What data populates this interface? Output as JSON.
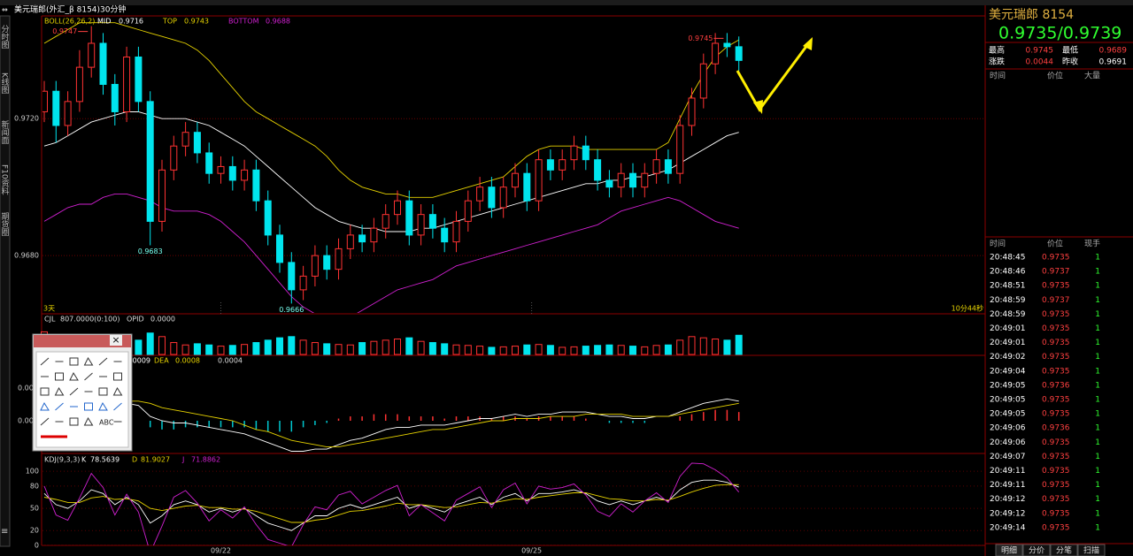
{
  "window": {
    "title": "美元瑞郎(外汇_β 8154)30分钟"
  },
  "sidebar_tabs": [
    "分时图",
    "K线图",
    "新闻面",
    "F10资料",
    "期货圈"
  ],
  "price_chart": {
    "type": "candlestick",
    "indicator": "BOLL(26,26,2)",
    "ylim": [
      0.9663,
      0.975
    ],
    "yticks": [
      {
        "value": 0.972,
        "label": "0.9720"
      },
      {
        "value": 0.968,
        "label": "0.9680"
      }
    ],
    "up_color": "#ff3232",
    "down_color": "#00e5ee",
    "footer_left": "3天",
    "footer_right": "10分44秒",
    "candles": [
      [
        0.9722,
        0.9731,
        0.9719,
        0.9728
      ],
      [
        0.9728,
        0.9731,
        0.9713,
        0.9718
      ],
      [
        0.9718,
        0.9728,
        0.9715,
        0.9725
      ],
      [
        0.9725,
        0.974,
        0.9722,
        0.9735
      ],
      [
        0.9735,
        0.9747,
        0.9732,
        0.9742
      ],
      [
        0.9742,
        0.9745,
        0.9727,
        0.973
      ],
      [
        0.973,
        0.9733,
        0.9718,
        0.9722
      ],
      [
        0.9722,
        0.9741,
        0.9719,
        0.9738
      ],
      [
        0.9738,
        0.9741,
        0.9722,
        0.9725
      ],
      [
        0.9725,
        0.9728,
        0.9683,
        0.969
      ],
      [
        0.969,
        0.9708,
        0.9687,
        0.9705
      ],
      [
        0.9705,
        0.9715,
        0.9702,
        0.9712
      ],
      [
        0.9712,
        0.9719,
        0.9709,
        0.9716
      ],
      [
        0.9716,
        0.9719,
        0.9707,
        0.971
      ],
      [
        0.971,
        0.9713,
        0.9701,
        0.9704
      ],
      [
        0.9704,
        0.9709,
        0.9701,
        0.9706
      ],
      [
        0.9706,
        0.9709,
        0.9699,
        0.9702
      ],
      [
        0.9702,
        0.9708,
        0.9699,
        0.9705
      ],
      [
        0.9705,
        0.9708,
        0.9693,
        0.9696
      ],
      [
        0.9696,
        0.9699,
        0.9683,
        0.9686
      ],
      [
        0.9686,
        0.9689,
        0.9675,
        0.9678
      ],
      [
        0.9678,
        0.9681,
        0.9666,
        0.967
      ],
      [
        0.967,
        0.9677,
        0.9667,
        0.9674
      ],
      [
        0.9674,
        0.9683,
        0.9671,
        0.968
      ],
      [
        0.968,
        0.9683,
        0.9673,
        0.9676
      ],
      [
        0.9676,
        0.9685,
        0.9673,
        0.9682
      ],
      [
        0.9682,
        0.9689,
        0.9679,
        0.9686
      ],
      [
        0.9686,
        0.9689,
        0.9681,
        0.9684
      ],
      [
        0.9684,
        0.9691,
        0.9681,
        0.9688
      ],
      [
        0.9688,
        0.9695,
        0.9685,
        0.9692
      ],
      [
        0.9692,
        0.9699,
        0.9689,
        0.9696
      ],
      [
        0.9696,
        0.9699,
        0.9683,
        0.9686
      ],
      [
        0.9686,
        0.9695,
        0.9683,
        0.9692
      ],
      [
        0.9692,
        0.9695,
        0.9685,
        0.9688
      ],
      [
        0.9688,
        0.9691,
        0.9681,
        0.9684
      ],
      [
        0.9684,
        0.9693,
        0.9681,
        0.969
      ],
      [
        0.969,
        0.9699,
        0.9687,
        0.9696
      ],
      [
        0.9696,
        0.9703,
        0.9693,
        0.97
      ],
      [
        0.97,
        0.9703,
        0.9691,
        0.9694
      ],
      [
        0.9694,
        0.9703,
        0.9691,
        0.97
      ],
      [
        0.97,
        0.9707,
        0.9697,
        0.9704
      ],
      [
        0.9704,
        0.9707,
        0.9693,
        0.9696
      ],
      [
        0.9696,
        0.9711,
        0.9693,
        0.9708
      ],
      [
        0.9708,
        0.9711,
        0.9702,
        0.9705
      ],
      [
        0.9705,
        0.9711,
        0.9702,
        0.9708
      ],
      [
        0.9708,
        0.9715,
        0.9705,
        0.9712
      ],
      [
        0.9712,
        0.9715,
        0.9705,
        0.9708
      ],
      [
        0.9708,
        0.9711,
        0.9699,
        0.9702
      ],
      [
        0.9702,
        0.9705,
        0.9697,
        0.97
      ],
      [
        0.97,
        0.9707,
        0.9697,
        0.9704
      ],
      [
        0.9704,
        0.9707,
        0.9697,
        0.97
      ],
      [
        0.97,
        0.9707,
        0.9697,
        0.9704
      ],
      [
        0.9704,
        0.9711,
        0.9701,
        0.9708
      ],
      [
        0.9708,
        0.9711,
        0.9701,
        0.9704
      ],
      [
        0.9704,
        0.9721,
        0.9701,
        0.9718
      ],
      [
        0.9718,
        0.9729,
        0.9715,
        0.9726
      ],
      [
        0.9726,
        0.9739,
        0.9723,
        0.9736
      ],
      [
        0.9736,
        0.9745,
        0.9733,
        0.9742
      ],
      [
        0.9742,
        0.9745,
        0.9738,
        0.9741
      ],
      [
        0.9741,
        0.9744,
        0.9734,
        0.9737
      ]
    ],
    "lines": [
      {
        "name": "MID",
        "color": "#ffffff",
        "values": [
          0.9712,
          0.9713,
          0.9715,
          0.9717,
          0.9719,
          0.972,
          0.9721,
          0.9722,
          0.9722,
          0.9721,
          0.972,
          0.972,
          0.972,
          0.9719,
          0.9718,
          0.9716,
          0.9714,
          0.9712,
          0.9709,
          0.9706,
          0.9703,
          0.97,
          0.9697,
          0.9694,
          0.9692,
          0.969,
          0.9689,
          0.9688,
          0.9688,
          0.9687,
          0.9687,
          0.9687,
          0.9688,
          0.9688,
          0.9689,
          0.969,
          0.9691,
          0.9692,
          0.9693,
          0.9694,
          0.9695,
          0.9696,
          0.9697,
          0.9698,
          0.9699,
          0.97,
          0.9701,
          0.9701,
          0.9702,
          0.9702,
          0.9703,
          0.9703,
          0.9704,
          0.9705,
          0.9707,
          0.9709,
          0.9711,
          0.9713,
          0.9715,
          0.9716
        ]
      },
      {
        "name": "TOP",
        "color": "#e6d200",
        "values": [
          0.9742,
          0.9744,
          0.9746,
          0.9748,
          0.9748,
          0.9748,
          0.9748,
          0.9747,
          0.9746,
          0.9745,
          0.9744,
          0.9743,
          0.9742,
          0.974,
          0.9737,
          0.9733,
          0.9729,
          0.9725,
          0.9722,
          0.972,
          0.9718,
          0.9716,
          0.9714,
          0.9712,
          0.9709,
          0.9705,
          0.9702,
          0.97,
          0.9699,
          0.9698,
          0.9698,
          0.9697,
          0.9697,
          0.9697,
          0.9698,
          0.9699,
          0.97,
          0.9701,
          0.9702,
          0.9703,
          0.9706,
          0.9709,
          0.9711,
          0.9712,
          0.9712,
          0.9712,
          0.9711,
          0.9711,
          0.9711,
          0.9711,
          0.9711,
          0.9711,
          0.9711,
          0.9713,
          0.972,
          0.9727,
          0.9733,
          0.9738,
          0.9741,
          0.9743
        ]
      },
      {
        "name": "BOTTOM",
        "color": "#d020d0",
        "values": [
          0.969,
          0.9692,
          0.9694,
          0.9695,
          0.9695,
          0.9697,
          0.9698,
          0.9698,
          0.9697,
          0.9696,
          0.9694,
          0.9693,
          0.9693,
          0.9693,
          0.9692,
          0.969,
          0.9687,
          0.9684,
          0.968,
          0.9676,
          0.9672,
          0.9668,
          0.9665,
          0.9663,
          0.9662,
          0.9661,
          0.9662,
          0.9664,
          0.9666,
          0.9668,
          0.967,
          0.9671,
          0.9672,
          0.9673,
          0.9675,
          0.9677,
          0.9678,
          0.9679,
          0.968,
          0.9681,
          0.9682,
          0.9683,
          0.9684,
          0.9685,
          0.9686,
          0.9687,
          0.9688,
          0.9689,
          0.9691,
          0.9693,
          0.9694,
          0.9695,
          0.9696,
          0.9697,
          0.9696,
          0.9694,
          0.9692,
          0.969,
          0.9689,
          0.9688
        ]
      }
    ]
  },
  "volume_chart": {
    "type": "bar",
    "header": "CJL",
    "params": "807.0000(0:100)",
    "opid_label": "OPID",
    "opid_value": "0.0000",
    "ylim": [
      0,
      1300
    ],
    "values": [
      950,
      700,
      500,
      600,
      800,
      650,
      500,
      700,
      600,
      900,
      750,
      500,
      400,
      450,
      400,
      350,
      380,
      420,
      500,
      600,
      700,
      750,
      600,
      500,
      450,
      420,
      400,
      500,
      550,
      600,
      650,
      700,
      550,
      500,
      450,
      400,
      380,
      350,
      300,
      320,
      350,
      400,
      420,
      380,
      300,
      320,
      350,
      380,
      400,
      380,
      350,
      320,
      380,
      400,
      600,
      750,
      700,
      650,
      600,
      807
    ]
  },
  "macd_chart": {
    "type": "line",
    "ylim": [
      -0.0015,
      0.003
    ],
    "yticks": [
      {
        "value": 0.0015,
        "label": "0.00"
      },
      {
        "value": 0,
        "label": "0.00"
      }
    ],
    "up_color": "#ff3232",
    "down_color": "#00c8d0",
    "histogram": [
      0.0002,
      0.0001,
      0.0001,
      0.0002,
      0.0003,
      0.0002,
      0.0001,
      0.0001,
      0.0,
      -0.0003,
      -0.0004,
      -0.0004,
      -0.0003,
      -0.0003,
      -0.0003,
      -0.0003,
      -0.0003,
      -0.0003,
      -0.0004,
      -0.0005,
      -0.0005,
      -0.0005,
      -0.0003,
      -0.0002,
      -0.0001,
      0.0001,
      0.0002,
      0.0002,
      0.0003,
      0.0003,
      0.0003,
      0.0002,
      0.0002,
      0.0002,
      0.0001,
      0.0002,
      0.0002,
      0.0002,
      0.0001,
      0.0002,
      0.0002,
      0.0001,
      0.0002,
      0.0002,
      0.0002,
      0.0002,
      0.0001,
      0.0,
      -0.0001,
      -0.0001,
      -0.0001,
      -0.0001,
      0.0,
      0.0,
      0.0002,
      0.0003,
      0.0004,
      0.0005,
      0.0005,
      0.0004
    ],
    "series": [
      {
        "name": "DIF",
        "color": "#ffffff",
        "values": [
          0.001,
          0.0009,
          0.0009,
          0.001,
          0.0011,
          0.001,
          0.0008,
          0.0008,
          0.0007,
          0.0002,
          0.0,
          -0.0001,
          -0.0001,
          -0.0002,
          -0.0003,
          -0.0004,
          -0.0005,
          -0.0006,
          -0.0008,
          -0.001,
          -0.0012,
          -0.0014,
          -0.0014,
          -0.0013,
          -0.0013,
          -0.0011,
          -0.0009,
          -0.0008,
          -0.0006,
          -0.0004,
          -0.0003,
          -0.0003,
          -0.0002,
          -0.0002,
          -0.0002,
          -0.0001,
          0.0,
          0.0001,
          0.0001,
          0.0002,
          0.0003,
          0.0002,
          0.0003,
          0.0003,
          0.0004,
          0.0004,
          0.0004,
          0.0003,
          0.0002,
          0.0002,
          0.0001,
          0.0001,
          0.0002,
          0.0002,
          0.0004,
          0.0006,
          0.0008,
          0.0009,
          0.001,
          0.0009
        ]
      },
      {
        "name": "DEA",
        "color": "#e6d200",
        "values": [
          0.0008,
          0.0008,
          0.0008,
          0.0008,
          0.0009,
          0.0009,
          0.0009,
          0.0009,
          0.0009,
          0.0008,
          0.0006,
          0.0005,
          0.0004,
          0.0003,
          0.0002,
          0.0001,
          0.0,
          -0.0002,
          -0.0004,
          -0.0005,
          -0.0007,
          -0.0009,
          -0.001,
          -0.0011,
          -0.0012,
          -0.0012,
          -0.0011,
          -0.001,
          -0.0009,
          -0.0008,
          -0.0007,
          -0.0006,
          -0.0005,
          -0.0004,
          -0.0004,
          -0.0003,
          -0.0002,
          -0.0001,
          0.0,
          0.0,
          0.0001,
          0.0001,
          0.0001,
          0.0002,
          0.0002,
          0.0002,
          0.0003,
          0.0003,
          0.0003,
          0.0003,
          0.0002,
          0.0002,
          0.0002,
          0.0002,
          0.0003,
          0.0004,
          0.0005,
          0.0006,
          0.0007,
          0.0008
        ]
      }
    ]
  },
  "kdj_chart": {
    "type": "line",
    "title": "KDJ(9,3,3)",
    "ylim": [
      0,
      124
    ],
    "yticks": [
      0,
      20,
      50,
      80,
      100
    ],
    "series": [
      {
        "name": "K",
        "color": "#ffffff",
        "values": [
          70,
          55,
          50,
          60,
          75,
          70,
          55,
          65,
          55,
          30,
          40,
          55,
          60,
          55,
          45,
          50,
          45,
          50,
          40,
          30,
          25,
          20,
          30,
          40,
          40,
          50,
          55,
          50,
          55,
          60,
          65,
          50,
          55,
          50,
          45,
          55,
          60,
          65,
          55,
          65,
          70,
          60,
          70,
          70,
          72,
          75,
          70,
          60,
          55,
          60,
          55,
          60,
          65,
          60,
          75,
          85,
          88,
          88,
          85,
          78.5639
        ]
      },
      {
        "name": "D",
        "color": "#e6d200",
        "values": [
          65,
          62,
          58,
          58,
          64,
          66,
          62,
          63,
          60,
          50,
          47,
          50,
          53,
          54,
          51,
          51,
          49,
          49,
          46,
          41,
          36,
          31,
          31,
          34,
          36,
          41,
          46,
          47,
          50,
          53,
          57,
          55,
          55,
          53,
          51,
          52,
          55,
          58,
          57,
          60,
          63,
          62,
          65,
          67,
          69,
          71,
          71,
          67,
          63,
          62,
          60,
          60,
          62,
          61,
          66,
          72,
          77,
          81,
          82,
          81.9027
        ]
      },
      {
        "name": "J",
        "color": "#d020d0",
        "values": [
          80,
          41,
          34,
          64,
          97,
          78,
          41,
          69,
          45,
          -10,
          26,
          65,
          74,
          57,
          33,
          48,
          37,
          52,
          28,
          8,
          3,
          -2,
          28,
          52,
          48,
          68,
          73,
          56,
          65,
          74,
          81,
          40,
          55,
          44,
          33,
          61,
          70,
          79,
          51,
          75,
          84,
          56,
          80,
          76,
          78,
          83,
          68,
          46,
          39,
          56,
          45,
          60,
          71,
          58,
          93,
          111,
          110,
          102,
          91,
          71.8862
        ]
      }
    ]
  },
  "x_labels": [
    "09/22",
    "09/25"
  ],
  "quote": {
    "name": "美元瑞郎 8154",
    "price": "0.9735/0.9739",
    "fields": [
      [
        "最高",
        "0.9745"
      ],
      [
        "最低",
        "0.9689"
      ],
      [
        "涨跌",
        "0.0044"
      ],
      [
        "昨收",
        "0.9691"
      ]
    ]
  },
  "big_trades": {
    "headers": [
      "时间",
      "价位",
      "大量"
    ]
  },
  "trades": {
    "headers": [
      "时间",
      "价位",
      "现手"
    ],
    "rows": [
      [
        "20:48:45",
        "0.9735",
        "1"
      ],
      [
        "20:48:46",
        "0.9737",
        "1"
      ],
      [
        "20:48:51",
        "0.9735",
        "1"
      ],
      [
        "20:48:59",
        "0.9737",
        "1"
      ],
      [
        "20:48:59",
        "0.9735",
        "1"
      ],
      [
        "20:49:01",
        "0.9735",
        "1"
      ],
      [
        "20:49:01",
        "0.9735",
        "1"
      ],
      [
        "20:49:02",
        "0.9735",
        "1"
      ],
      [
        "20:49:04",
        "0.9735",
        "1"
      ],
      [
        "20:49:05",
        "0.9736",
        "1"
      ],
      [
        "20:49:05",
        "0.9735",
        "1"
      ],
      [
        "20:49:05",
        "0.9735",
        "1"
      ],
      [
        "20:49:06",
        "0.9736",
        "1"
      ],
      [
        "20:49:06",
        "0.9735",
        "1"
      ],
      [
        "20:49:07",
        "0.9735",
        "1"
      ],
      [
        "20:49:11",
        "0.9735",
        "1"
      ],
      [
        "20:49:11",
        "0.9735",
        "1"
      ],
      [
        "20:49:12",
        "0.9735",
        "1"
      ],
      [
        "20:49:12",
        "0.9735",
        "1"
      ],
      [
        "20:49:14",
        "0.9735",
        "1"
      ]
    ]
  },
  "bottom_tabs": [
    "明细",
    "分价",
    "分笔",
    "扫描"
  ],
  "toolbox": {
    "text_tool": "ABC"
  }
}
